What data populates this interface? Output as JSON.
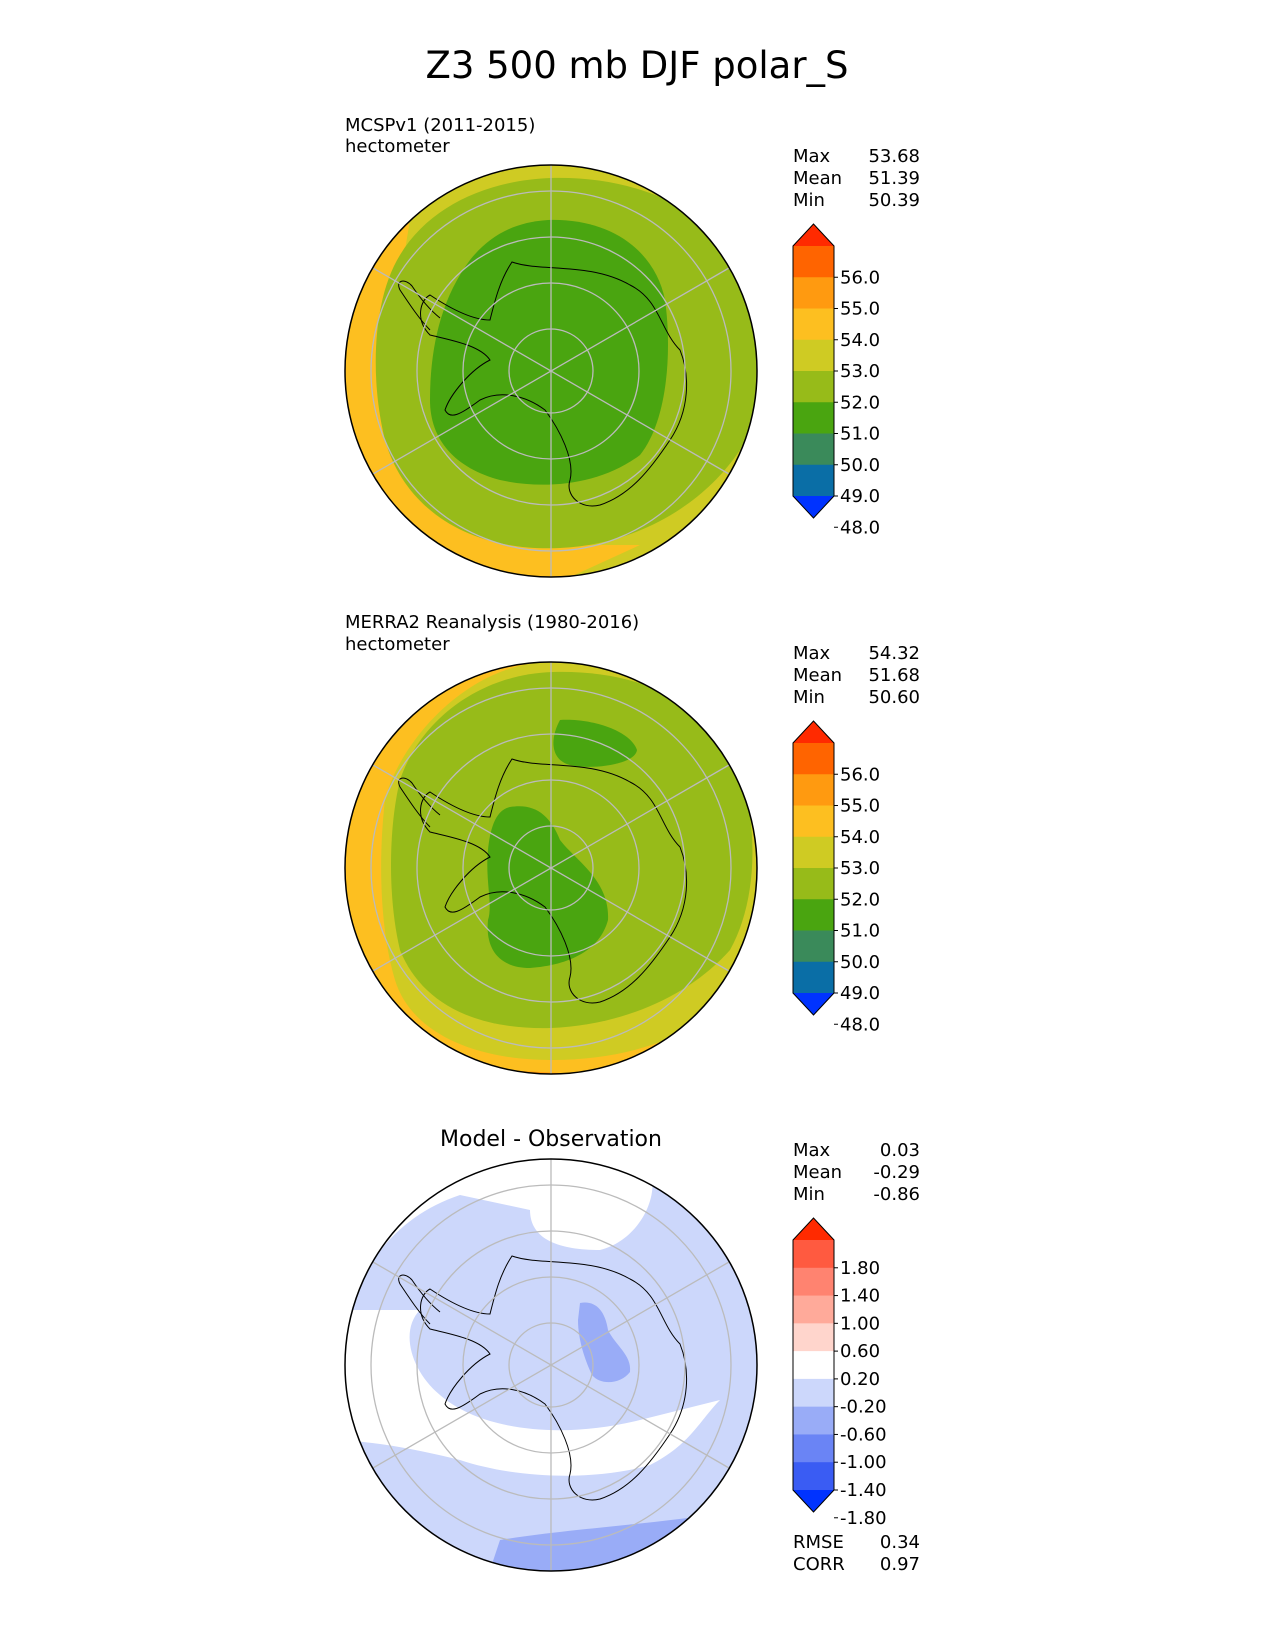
{
  "figure": {
    "title": "Z3 500 mb DJF polar_S"
  },
  "colors": {
    "ocean_outer": "#fdbf20",
    "c52_53": "#cfcb23",
    "c51_52": "#97bb19",
    "c50_51": "#4aa510",
    "c_lowest_shade": "#3a8a5a",
    "diff_light_blue": "#ccd7fb",
    "diff_mid_blue": "#99acf7",
    "grid": "#bbbbbb",
    "coast": "#000000"
  },
  "chart_data": [
    {
      "type": "heatmap",
      "projection": "south-polar-stereographic",
      "title_left": "MCSPv1 (2011-2015)",
      "units": "hectometer",
      "stats": [
        {
          "label": "Max",
          "value": "53.68"
        },
        {
          "label": "Mean",
          "value": "51.39"
        },
        {
          "label": "Min",
          "value": "50.39"
        }
      ],
      "colorbar": {
        "ticks": [
          "56.0",
          "55.0",
          "54.0",
          "53.0",
          "52.0",
          "51.0",
          "50.0",
          "49.0",
          "48.0"
        ],
        "colors_top_to_bottom": [
          "#ff2a00",
          "#ff6400",
          "#ff9a10",
          "#fdbf20",
          "#cfcb23",
          "#97bb19",
          "#4aa510",
          "#3a8a5a",
          "#0a6ea6",
          "#0033ff"
        ],
        "extend": "both"
      }
    },
    {
      "type": "heatmap",
      "projection": "south-polar-stereographic",
      "title_left": "MERRA2 Reanalysis (1980-2016)",
      "units": "hectometer",
      "stats": [
        {
          "label": "Max",
          "value": "54.32"
        },
        {
          "label": "Mean",
          "value": "51.68"
        },
        {
          "label": "Min",
          "value": "50.60"
        }
      ],
      "colorbar": {
        "ticks": [
          "56.0",
          "55.0",
          "54.0",
          "53.0",
          "52.0",
          "51.0",
          "50.0",
          "49.0",
          "48.0"
        ],
        "colors_top_to_bottom": [
          "#ff2a00",
          "#ff6400",
          "#ff9a10",
          "#fdbf20",
          "#cfcb23",
          "#97bb19",
          "#4aa510",
          "#3a8a5a",
          "#0a6ea6",
          "#0033ff"
        ],
        "extend": "both"
      }
    },
    {
      "type": "heatmap",
      "projection": "south-polar-stereographic",
      "title_center": "Model - Observation",
      "stats": [
        {
          "label": "Max",
          "value": "0.03"
        },
        {
          "label": "Mean",
          "value": "-0.29"
        },
        {
          "label": "Min",
          "value": "-0.86"
        }
      ],
      "metrics": [
        {
          "label": "RMSE",
          "value": "0.34"
        },
        {
          "label": "CORR",
          "value": "0.97"
        }
      ],
      "colorbar": {
        "ticks": [
          "1.80",
          "1.40",
          "1.00",
          "0.60",
          "0.20",
          "-0.20",
          "-0.60",
          "-1.00",
          "-1.40",
          "-1.80"
        ],
        "colors_top_to_bottom": [
          "#ff2a00",
          "#ff5a40",
          "#ff8370",
          "#ffaa9a",
          "#ffd5cc",
          "#ffffff",
          "#ccd7fb",
          "#99acf7",
          "#6a84f5",
          "#3a5cf3",
          "#0033ff"
        ],
        "extend": "both"
      }
    }
  ]
}
